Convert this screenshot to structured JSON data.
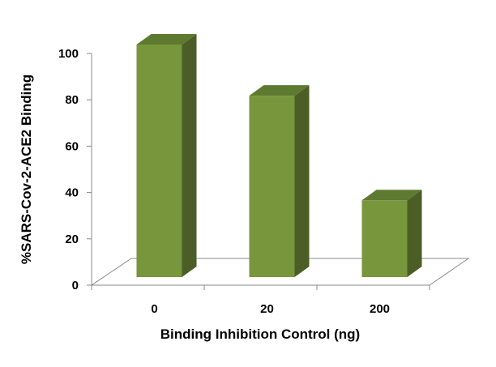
{
  "chart_data": {
    "type": "bar",
    "title": "",
    "xlabel": "Binding Inhibition Control (ng)",
    "ylabel": "%SARS-Cov-2-ACE2 Binding",
    "categories": [
      "0",
      "20",
      "200"
    ],
    "values": [
      100,
      78,
      33
    ],
    "yticks": [
      "0",
      "20",
      "40",
      "60",
      "80",
      "100"
    ],
    "ylim": [
      0,
      100
    ],
    "grid": false,
    "style": "3d",
    "colors": {
      "bar_front": "#78963c",
      "bar_top": "#5e7a30",
      "bar_side": "#4a5e26",
      "floor": "#ffffff",
      "axis": "#888888"
    }
  }
}
